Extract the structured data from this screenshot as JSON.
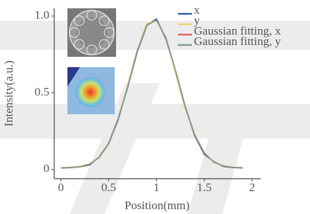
{
  "chart_data": {
    "type": "line",
    "x_label": "Position(mm)",
    "y_label": "Intensity(a.u.)",
    "x": [
      0,
      0.1,
      0.2,
      0.3,
      0.4,
      0.5,
      0.6,
      0.7,
      0.8,
      0.9,
      1.0,
      1.1,
      1.2,
      1.3,
      1.4,
      1.5,
      1.6,
      1.7,
      1.8,
      1.9
    ],
    "series": [
      {
        "name": "x",
        "color": "#2b5fa8",
        "values": [
          0.01,
          0.012,
          0.018,
          0.03,
          0.08,
          0.17,
          0.33,
          0.54,
          0.77,
          0.94,
          0.98,
          0.85,
          0.64,
          0.41,
          0.22,
          0.1,
          0.05,
          0.02,
          0.013,
          0.01
        ]
      },
      {
        "name": "y",
        "color": "#e8d46c",
        "values": [
          0.012,
          0.014,
          0.02,
          0.035,
          0.075,
          0.165,
          0.32,
          0.55,
          0.78,
          0.95,
          0.97,
          0.86,
          0.63,
          0.4,
          0.23,
          0.11,
          0.045,
          0.024,
          0.014,
          0.012
        ]
      },
      {
        "name": "Gaussian fitting, x",
        "color": "#e0605f",
        "values": [
          0.01,
          0.012,
          0.017,
          0.034,
          0.078,
          0.169,
          0.326,
          0.543,
          0.775,
          0.942,
          0.973,
          0.854,
          0.639,
          0.407,
          0.222,
          0.107,
          0.048,
          0.022,
          0.013,
          0.011
        ]
      },
      {
        "name": "Gaussian fitting, y",
        "color": "#7f9e8c",
        "values": [
          0.011,
          0.013,
          0.018,
          0.035,
          0.079,
          0.168,
          0.325,
          0.54,
          0.772,
          0.94,
          0.972,
          0.856,
          0.642,
          0.41,
          0.224,
          0.108,
          0.049,
          0.023,
          0.014,
          0.012
        ]
      }
    ],
    "xlim": [
      -0.07,
      2.09
    ],
    "ylim": [
      -0.06,
      1.05
    ],
    "xticks": [
      0,
      0.5,
      1,
      1.5,
      2
    ],
    "yticks": [
      0,
      0.5,
      {
        "value": 1,
        "label": "1.0"
      }
    ]
  }
}
